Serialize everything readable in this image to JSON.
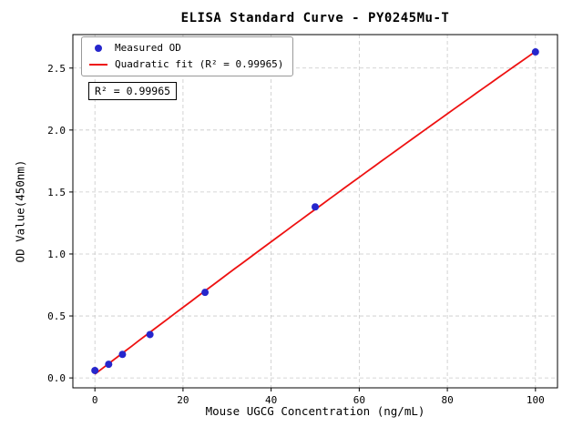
{
  "chart_data": {
    "type": "scatter",
    "title": "ELISA Standard Curve - PY0245Mu-T",
    "xlabel": "Mouse UGCG Concentration (ng/mL)",
    "ylabel": "OD Value(450nm)",
    "x": [
      0,
      3.125,
      6.25,
      12.5,
      25,
      50,
      100
    ],
    "y": [
      0.06,
      0.11,
      0.19,
      0.35,
      0.69,
      1.38,
      2.63
    ],
    "series": [
      {
        "name": "Measured OD",
        "type": "scatter",
        "color": "#2626cc"
      },
      {
        "name": "Quadratic fit (R² = 0.99965)",
        "type": "quadratic-fit-line",
        "color": "#ee1111"
      }
    ],
    "annotation": "R² = 0.99965",
    "r_squared": 0.99965,
    "xlim": [
      -5,
      105
    ],
    "ylim": [
      -0.08,
      2.77
    ],
    "xticks": {
      "values": [
        0,
        20,
        40,
        60,
        80,
        100
      ],
      "labels": [
        "0",
        "20",
        "40",
        "60",
        "80",
        "100"
      ]
    },
    "yticks": {
      "values": [
        0,
        0.5,
        1.0,
        1.5,
        2.0,
        2.5
      ],
      "labels": [
        "0.0",
        "0.5",
        "1.0",
        "1.5",
        "2.0",
        "2.5"
      ]
    },
    "grid": true,
    "grid_style": "dashed",
    "grid_color": "#c8c8c8",
    "legend_position": "upper-left",
    "axes_color": "#000000",
    "background_color": "#ffffff"
  }
}
